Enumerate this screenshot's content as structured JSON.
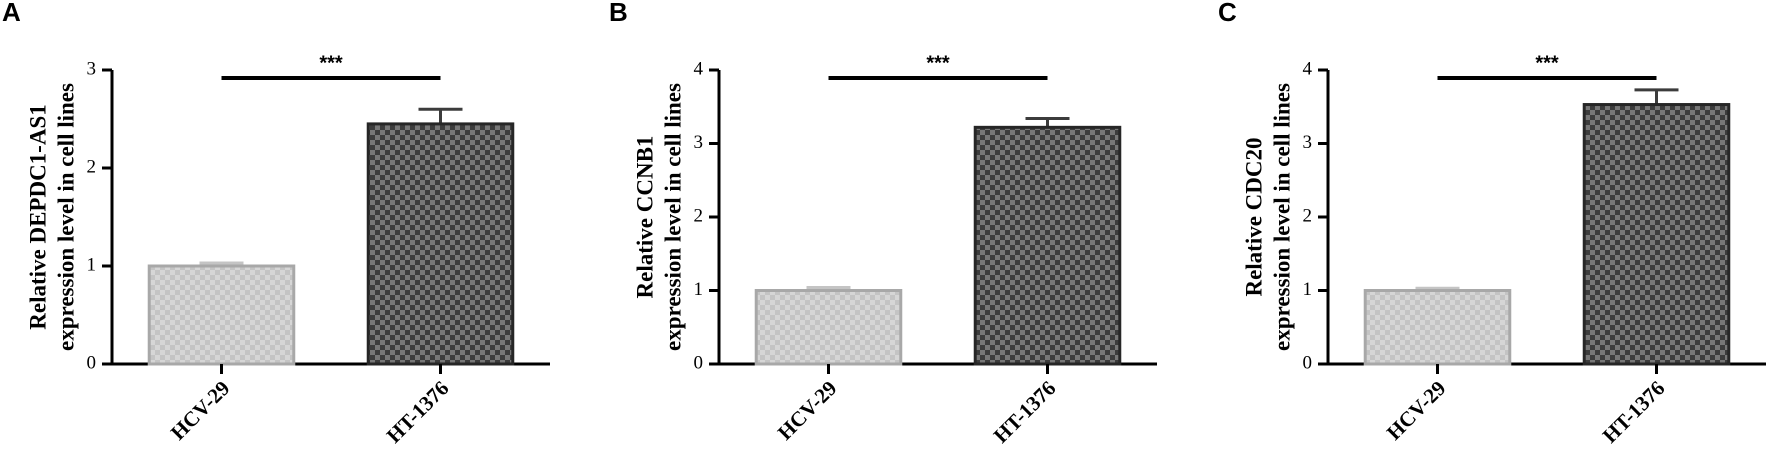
{
  "chart_data": [
    {
      "type": "bar",
      "panel": "A",
      "ylabel": [
        "Relative DEPDC1-AS1",
        "expression level in cell lines"
      ],
      "categories": [
        "HCV-29",
        "HT-1376"
      ],
      "values": [
        1.0,
        2.45
      ],
      "errors": [
        0.03,
        0.15
      ],
      "colors": [
        "#c4c4c4",
        "#3c3c3c"
      ],
      "ylim": [
        0,
        3
      ],
      "yticks": [
        0,
        1,
        2,
        3
      ],
      "significance": "***"
    },
    {
      "type": "bar",
      "panel": "B",
      "ylabel": [
        "Relative CCNB1",
        "expression level in cell lines"
      ],
      "categories": [
        "HCV-29",
        "HT-1376"
      ],
      "values": [
        1.0,
        3.22
      ],
      "errors": [
        0.04,
        0.12
      ],
      "colors": [
        "#c4c4c4",
        "#3c3c3c"
      ],
      "ylim": [
        0,
        4
      ],
      "yticks": [
        0,
        1,
        2,
        3,
        4
      ],
      "significance": "***"
    },
    {
      "type": "bar",
      "panel": "C",
      "ylabel": [
        "Relative CDC20",
        "expression level in cell lines"
      ],
      "categories": [
        "HCV-29",
        "HT-1376"
      ],
      "values": [
        1.0,
        3.53
      ],
      "errors": [
        0.03,
        0.2
      ],
      "colors": [
        "#c4c4c4",
        "#3c3c3c"
      ],
      "ylim": [
        0,
        4
      ],
      "yticks": [
        0,
        1,
        2,
        3,
        4
      ],
      "significance": "***"
    }
  ]
}
